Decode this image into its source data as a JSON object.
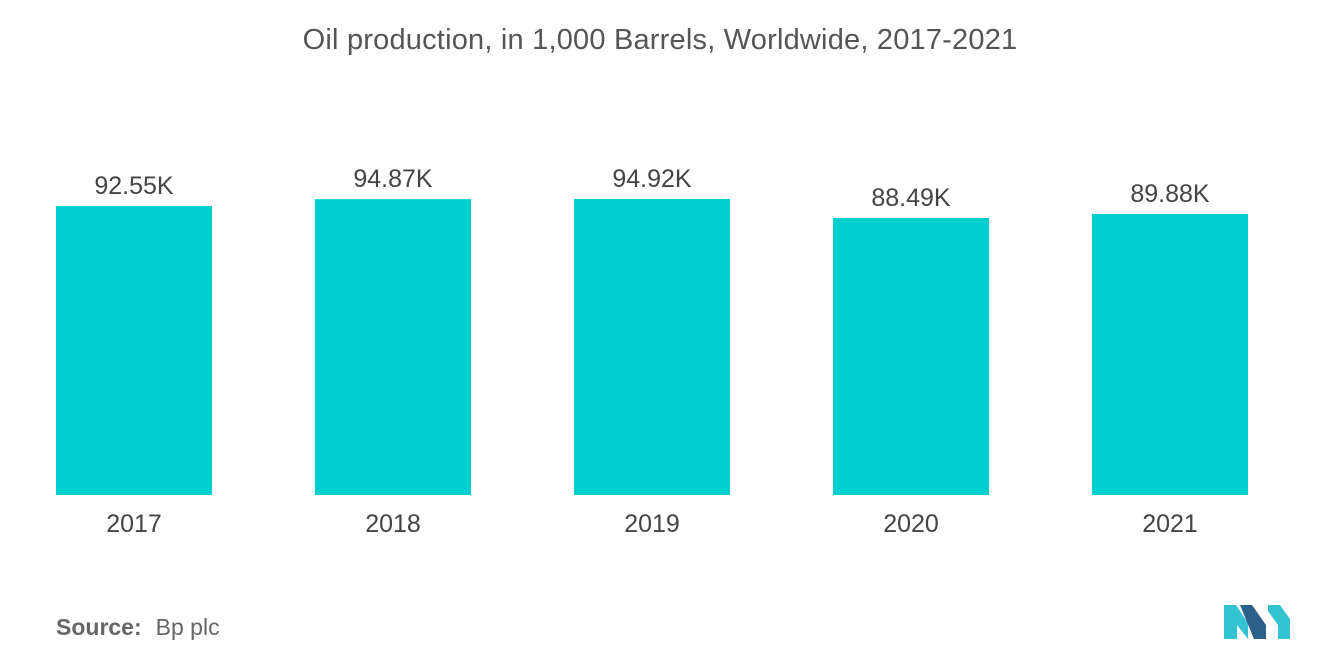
{
  "chart_data": {
    "type": "bar",
    "title": "Oil production, in 1,000 Barrels, Worldwide, 2017-2021",
    "categories": [
      "2017",
      "2018",
      "2019",
      "2020",
      "2021"
    ],
    "values": [
      92.55,
      94.87,
      94.92,
      88.49,
      89.88
    ],
    "data_labels": [
      "92.55K",
      "94.87K",
      "94.92K",
      "88.49K",
      "89.88K"
    ],
    "xlabel": "",
    "ylabel": "",
    "ylim": [
      0,
      100
    ],
    "grid": false,
    "legend": "none",
    "bar_color": "#00CED1"
  },
  "source": {
    "label": "Source:",
    "value": "Bp plc"
  },
  "colors": {
    "bar": "#00CED1",
    "logo_dark": "#2C5F8A",
    "logo_light": "#34C3D0"
  }
}
